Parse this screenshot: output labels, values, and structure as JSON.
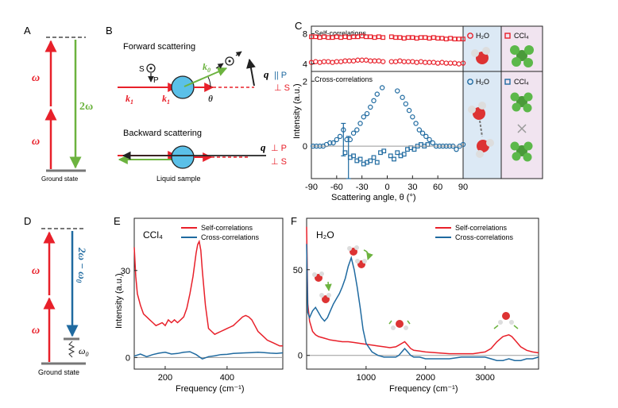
{
  "panels": {
    "A": {
      "label": "A",
      "omega": "ω",
      "two_omega": "2ω",
      "ground": "Ground state"
    },
    "B": {
      "label": "B",
      "forward_title": "Forward scattering",
      "backward_title": "Backward scattering",
      "S": "S",
      "P": "P",
      "k1": "k",
      "k1_sub": "1",
      "k0": "k",
      "k0_sub": "0",
      "q": "q",
      "theta": "θ",
      "par_P": "|| P",
      "perp_S": "⊥ S",
      "perp_P": "⊥ P",
      "perp_S2": "⊥ S",
      "liquid": "Liquid sample"
    },
    "C": {
      "label": "C",
      "self_title": "Self-correlations",
      "cross_title": "Cross-correlations",
      "ylabel": "Intensity (a.u.)",
      "xlabel": "Scattering angle, θ (°)",
      "legend_h2o": "H₂O",
      "legend_ccl4": "CCl₄"
    },
    "D": {
      "label": "D",
      "omega": "ω",
      "two_omega_minus": "2ω − ω",
      "sub0": "0",
      "omega0": "ω",
      "ground": "Ground state"
    },
    "E": {
      "label": "E",
      "title": "CCl₄",
      "legend_self": "Self-correlations",
      "legend_cross": "Cross-correlations",
      "ylabel": "Intensity (a.u.)",
      "xlabel": "Frequency (cm⁻¹)"
    },
    "F": {
      "label": "F",
      "title": "H₂O",
      "legend_self": "Self-correlations",
      "legend_cross": "Cross-correlations",
      "xlabel": "Frequency (cm⁻¹)"
    }
  },
  "colors": {
    "red": "#e8202a",
    "blue": "#1f6aa0",
    "green": "#6cb33f",
    "panel_blue": "#dce9f5",
    "panel_pink": "#f1e4f0"
  },
  "chart_data": [
    {
      "id": "C-self",
      "type": "scatter",
      "title": "Self-correlations",
      "xlabel": "Scattering angle, θ (°)",
      "ylabel": "Intensity (a.u.)",
      "xlim": [
        -90,
        90
      ],
      "ylim": [
        3,
        9
      ],
      "yticks": [
        4,
        8
      ],
      "series": [
        {
          "name": "CCl4",
          "marker": "square",
          "x": [
            -90,
            -85,
            -80,
            -75,
            -70,
            -65,
            -60,
            -55,
            -50,
            -45,
            -40,
            -35,
            -30,
            -25,
            -20,
            -15,
            -10,
            -5,
            5,
            10,
            15,
            20,
            25,
            30,
            35,
            40,
            45,
            50,
            55,
            60,
            65,
            70,
            75,
            80,
            85,
            90
          ],
          "values": [
            7.6,
            7.6,
            7.5,
            7.6,
            7.5,
            7.5,
            7.6,
            7.5,
            7.6,
            7.5,
            7.6,
            7.6,
            7.7,
            7.6,
            7.6,
            7.5,
            7.6,
            7.5,
            7.6,
            7.5,
            7.5,
            7.4,
            7.5,
            7.5,
            7.4,
            7.5,
            7.5,
            7.4,
            7.5,
            7.4,
            7.4,
            7.3,
            7.4,
            7.3,
            7.3,
            7.3
          ]
        },
        {
          "name": "H2O",
          "marker": "circle",
          "x": [
            -90,
            -85,
            -80,
            -75,
            -70,
            -65,
            -60,
            -55,
            -50,
            -45,
            -40,
            -35,
            -30,
            -25,
            -20,
            -15,
            -10,
            -5,
            5,
            10,
            15,
            20,
            25,
            30,
            35,
            40,
            45,
            50,
            55,
            60,
            65,
            70,
            75,
            80,
            85,
            90
          ],
          "values": [
            4.2,
            4.3,
            4.2,
            4.3,
            4.3,
            4.2,
            4.3,
            4.3,
            4.4,
            4.4,
            4.4,
            4.5,
            4.5,
            4.5,
            4.4,
            4.4,
            4.4,
            4.3,
            4.3,
            4.3,
            4.4,
            4.3,
            4.3,
            4.3,
            4.2,
            4.3,
            4.2,
            4.2,
            4.2,
            4.1,
            4.2,
            4.1,
            4.1,
            4.1,
            4.0,
            4.1
          ]
        }
      ]
    },
    {
      "id": "C-cross",
      "type": "scatter",
      "title": "Cross-correlations",
      "xlabel": "Scattering angle, θ (°)",
      "ylabel": "Intensity (a.u.)",
      "xlim": [
        -90,
        90
      ],
      "ylim": [
        -1,
        2.3
      ],
      "yticks": [
        0,
        2
      ],
      "xticks": [
        -90,
        -60,
        -30,
        0,
        30,
        60,
        90
      ],
      "series": [
        {
          "name": "H2O",
          "marker": "circle",
          "x": [
            -88,
            -84,
            -80,
            -76,
            -72,
            -68,
            -64,
            -60,
            -56,
            -52,
            -48,
            -44,
            -40,
            -36,
            -32,
            -28,
            -24,
            -20,
            -16,
            -12,
            -6,
            12,
            18,
            22,
            26,
            30,
            34,
            38,
            42,
            46,
            50,
            54,
            58,
            62,
            66,
            70,
            74,
            78,
            82,
            86,
            90
          ],
          "values": [
            0.0,
            0.0,
            0.0,
            0.0,
            0.05,
            0.1,
            0.1,
            0.2,
            0.3,
            0.5,
            0.2,
            0.2,
            0.4,
            0.5,
            0.7,
            0.9,
            1.0,
            1.2,
            1.4,
            1.6,
            1.8,
            1.7,
            1.5,
            1.3,
            1.1,
            0.9,
            0.7,
            0.5,
            0.4,
            0.3,
            0.2,
            0.1,
            0.0,
            0.0,
            0.0,
            0.0,
            0.0,
            0.0,
            -0.1,
            0.0,
            0.05
          ]
        },
        {
          "name": "CCl4",
          "marker": "square",
          "x": [
            -50,
            -44,
            -40,
            -36,
            -32,
            -28,
            -24,
            -20,
            -16,
            -12,
            -8,
            -4,
            4,
            8,
            12,
            16,
            20,
            24,
            28,
            32,
            36,
            40,
            44,
            48
          ],
          "values": [
            -0.2,
            -0.35,
            -0.3,
            -0.45,
            -0.4,
            -0.55,
            -0.5,
            -0.45,
            -0.35,
            -0.5,
            -0.2,
            -0.15,
            -0.3,
            -0.4,
            -0.2,
            -0.3,
            -0.25,
            -0.1,
            -0.05,
            -0.1,
            0.0,
            0.05,
            0.0,
            0.05
          ]
        }
      ]
    },
    {
      "id": "E",
      "type": "line",
      "title": "CCl₄",
      "xlabel": "Frequency (cm⁻¹)",
      "ylabel": "Intensity (a.u.)",
      "xlim": [
        100,
        580
      ],
      "ylim": [
        -4,
        48
      ],
      "xticks": [
        200,
        400
      ],
      "yticks": [
        0,
        30
      ],
      "series": [
        {
          "name": "Self-correlations",
          "x": [
            100,
            105,
            110,
            120,
            130,
            140,
            150,
            160,
            170,
            180,
            190,
            200,
            210,
            220,
            230,
            240,
            250,
            260,
            270,
            280,
            290,
            300,
            305,
            310,
            315,
            320,
            330,
            340,
            350,
            360,
            370,
            380,
            390,
            400,
            410,
            420,
            430,
            440,
            450,
            460,
            470,
            480,
            490,
            500,
            510,
            520,
            530,
            540,
            550,
            560,
            570,
            580
          ],
          "values": [
            38,
            28,
            22,
            18,
            15,
            14,
            13,
            12,
            11,
            11.5,
            12,
            11,
            13,
            12,
            13,
            12,
            13,
            14,
            17,
            22,
            28,
            36,
            39,
            40,
            37,
            30,
            18,
            10,
            9,
            8,
            8.5,
            9,
            9.5,
            10,
            10.5,
            11,
            12,
            13,
            14,
            14.5,
            14,
            13,
            11,
            9,
            8,
            7,
            6,
            5.5,
            5,
            4.5,
            4,
            4
          ]
        },
        {
          "name": "Cross-correlations",
          "x": [
            100,
            120,
            140,
            160,
            180,
            200,
            220,
            240,
            260,
            280,
            300,
            320,
            340,
            360,
            380,
            400,
            420,
            440,
            460,
            480,
            500,
            520,
            540,
            560,
            580
          ],
          "values": [
            0.5,
            1.2,
            0.3,
            1.0,
            1.5,
            1.8,
            1.2,
            1.4,
            1.8,
            2.0,
            1.0,
            -0.5,
            0.3,
            0.6,
            1.0,
            1.1,
            1.4,
            1.5,
            1.6,
            1.7,
            1.8,
            1.7,
            1.5,
            1.4,
            1.6
          ]
        }
      ]
    },
    {
      "id": "F",
      "type": "line",
      "title": "H₂O",
      "xlabel": "Frequency (cm⁻¹)",
      "ylabel": "Intensity (a.u.)",
      "xlim": [
        0,
        3900
      ],
      "ylim": [
        -8,
        80
      ],
      "xticks": [
        1000,
        2000,
        3000
      ],
      "yticks": [
        0,
        50
      ],
      "series": [
        {
          "name": "Self-correlations",
          "x": [
            0,
            20,
            50,
            100,
            150,
            200,
            300,
            400,
            500,
            600,
            700,
            800,
            900,
            1000,
            1100,
            1200,
            1300,
            1400,
            1500,
            1550,
            1600,
            1650,
            1700,
            1750,
            1800,
            1900,
            2000,
            2200,
            2400,
            2600,
            2800,
            3000,
            3100,
            3200,
            3300,
            3400,
            3450,
            3500,
            3600,
            3700,
            3800,
            3900
          ],
          "values": [
            75,
            30,
            20,
            14,
            12,
            11,
            10,
            9,
            8.5,
            8,
            8,
            7.5,
            7,
            6.5,
            6,
            5.5,
            5,
            4.5,
            5,
            6,
            7,
            8,
            6,
            4,
            3,
            2.5,
            2,
            1.5,
            1,
            1,
            1,
            2,
            4,
            8,
            11,
            12,
            11,
            9,
            5,
            3,
            2,
            1.5
          ]
        },
        {
          "name": "Cross-correlations",
          "x": [
            0,
            20,
            50,
            100,
            150,
            200,
            250,
            300,
            350,
            400,
            450,
            500,
            550,
            600,
            650,
            700,
            750,
            800,
            850,
            900,
            950,
            1000,
            1100,
            1200,
            1300,
            1400,
            1500,
            1550,
            1600,
            1650,
            1700,
            1750,
            1800,
            1900,
            2000,
            2200,
            2400,
            2600,
            2800,
            3000,
            3100,
            3200,
            3300,
            3400,
            3500,
            3600,
            3700,
            3800,
            3900
          ],
          "values": [
            65,
            25,
            22,
            26,
            28,
            25,
            22,
            20,
            22,
            26,
            30,
            33,
            36,
            40,
            45,
            52,
            57,
            50,
            40,
            28,
            15,
            7,
            2,
            0,
            -1,
            -1,
            -1,
            0,
            2,
            4,
            2,
            0,
            -1,
            -1,
            -2,
            -2,
            -2,
            -1,
            -1,
            -1,
            -2,
            -3,
            -3,
            -2,
            -3,
            -3,
            -2,
            -2,
            -1
          ]
        }
      ]
    }
  ]
}
